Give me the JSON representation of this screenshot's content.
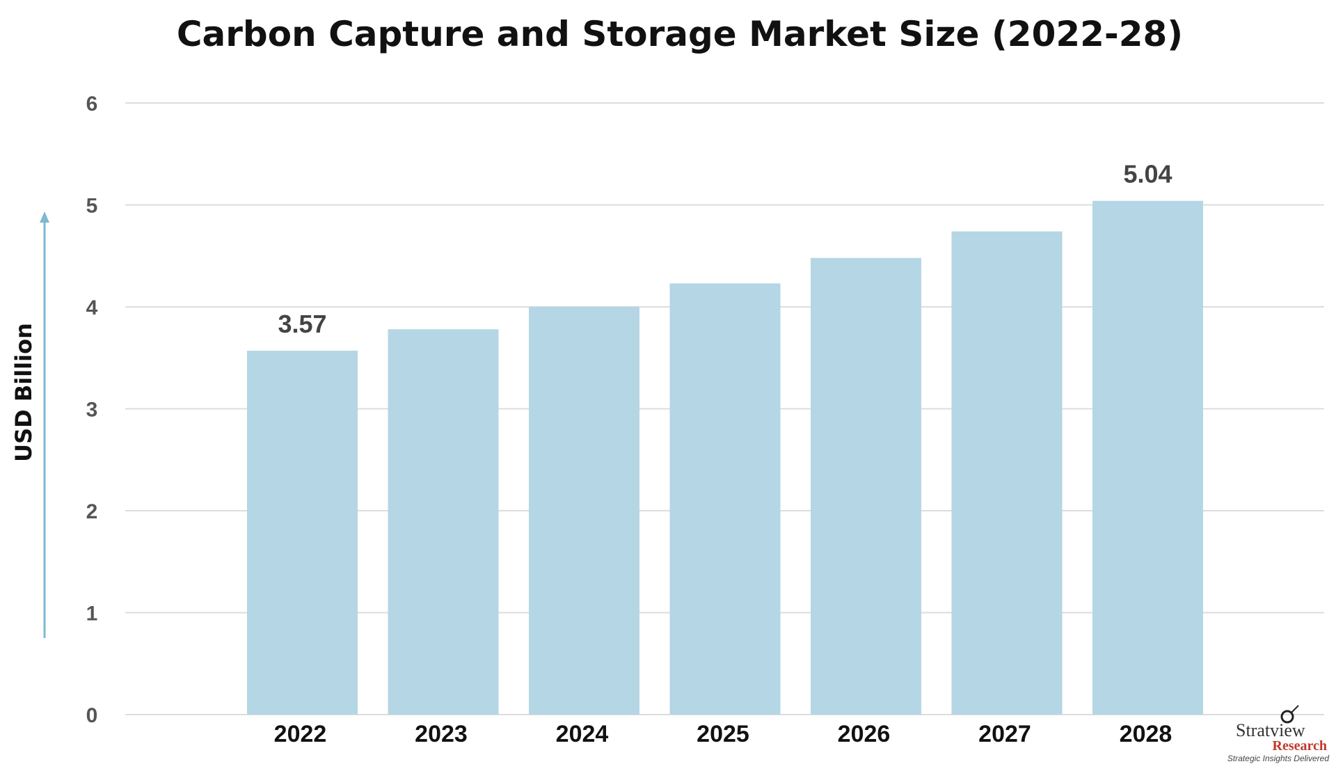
{
  "chart_data": {
    "type": "bar",
    "title": "Carbon Capture and Storage Market Size (2022-28)",
    "xlabel": "",
    "ylabel": "USD Billion",
    "categories": [
      "2022",
      "2023",
      "2024",
      "2025",
      "2026",
      "2027",
      "2028"
    ],
    "values": [
      3.57,
      3.78,
      4.0,
      4.23,
      4.48,
      4.74,
      5.04
    ],
    "data_labels": {
      "2022": "3.57",
      "2028": "5.04"
    },
    "ylim": [
      0,
      6
    ],
    "yticks": [
      0,
      1,
      2,
      3,
      4,
      5,
      6
    ],
    "grid": true,
    "legend": "none",
    "colors": {
      "bar": "#b5d6e4",
      "grid": "#dddddd",
      "axis_arrow": "#7fb8cf"
    }
  },
  "logo": {
    "name": "Stratview",
    "sub": "Research",
    "tagline": "Strategic Insights Delivered"
  }
}
